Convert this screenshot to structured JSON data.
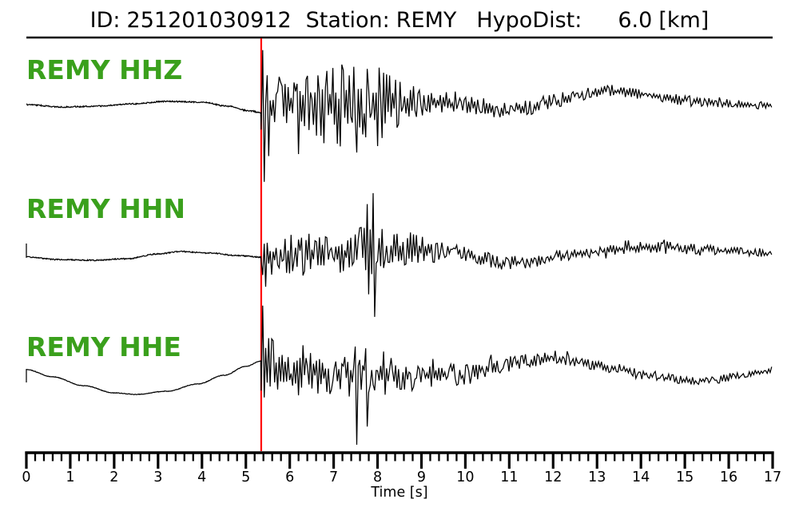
{
  "header": {
    "id_label": "ID:",
    "id_value": "251201030912",
    "station_label": "Station:",
    "station_value": "REMY",
    "hypodist_label": "HypoDist:",
    "hypodist_value": "6.0",
    "hypodist_unit": "[km]"
  },
  "colors": {
    "trace_label_green": "#3aa01c",
    "pick_line_red": "#ff0000",
    "waveform_black": "#000000",
    "axis_black": "#000000"
  },
  "chart_data": {
    "type": "line",
    "title": "ID: 251201030912  Station: REMY  HypoDist:    6.0 [km]",
    "xlabel": "Time [s]",
    "x_range": [
      0,
      17
    ],
    "x_major_tick_step": 1,
    "x_minor_tick_step": 0.2,
    "x_tick_labels": [
      "0",
      "1",
      "2",
      "3",
      "4",
      "5",
      "6",
      "7",
      "8",
      "9",
      "10",
      "11",
      "12",
      "13",
      "14",
      "15",
      "16",
      "17"
    ],
    "grid": false,
    "legend": "none",
    "pick_time_s": 5.35,
    "traces": [
      {
        "label": "REMY HHZ",
        "channel": "HHZ",
        "pre_jitter": 0.8,
        "start_tick": 0,
        "drift": [
          [
            0,
            2
          ],
          [
            0.8,
            -1
          ],
          [
            1.6,
            0
          ],
          [
            2.4,
            3
          ],
          [
            3.2,
            6
          ],
          [
            4.0,
            5
          ],
          [
            4.6,
            0
          ],
          [
            5.1,
            -6
          ],
          [
            5.35,
            -8
          ],
          [
            5.6,
            -3
          ],
          [
            6,
            0
          ],
          [
            7,
            0
          ],
          [
            8,
            2
          ],
          [
            8.6,
            5
          ],
          [
            9.3,
            4
          ],
          [
            10,
            0
          ],
          [
            10.8,
            -4
          ],
          [
            11.4,
            -2
          ],
          [
            12,
            6
          ],
          [
            12.6,
            14
          ],
          [
            13.2,
            19
          ],
          [
            13.8,
            17
          ],
          [
            14.4,
            12
          ],
          [
            15,
            8
          ],
          [
            15.7,
            4
          ],
          [
            16.3,
            2
          ],
          [
            17,
            1
          ]
        ],
        "envelope": [
          [
            5.38,
            58
          ],
          [
            5.6,
            42
          ],
          [
            6.0,
            38
          ],
          [
            6.4,
            42
          ],
          [
            6.8,
            48
          ],
          [
            7.2,
            55
          ],
          [
            7.6,
            62
          ],
          [
            8.0,
            55
          ],
          [
            8.4,
            32
          ],
          [
            9.0,
            20
          ],
          [
            9.5,
            15
          ],
          [
            10,
            13
          ],
          [
            10.5,
            12
          ],
          [
            11,
            10
          ],
          [
            11.5,
            9
          ],
          [
            12,
            9
          ],
          [
            12.7,
            8
          ],
          [
            13.5,
            8
          ],
          [
            14.5,
            7
          ],
          [
            15.5,
            6
          ],
          [
            16.5,
            5
          ],
          [
            17,
            5
          ]
        ],
        "spikes": [
          {
            "t": 5.38,
            "up": 78,
            "down": 87
          },
          {
            "t": 6.18,
            "up": 28,
            "down": 60
          }
        ]
      },
      {
        "label": "REMY HHN",
        "channel": "HHN",
        "pre_jitter": 0.7,
        "start_tick": -17,
        "drift": [
          [
            0,
            0
          ],
          [
            0.7,
            -3
          ],
          [
            1.5,
            -4
          ],
          [
            2.3,
            -2
          ],
          [
            3.0,
            4
          ],
          [
            3.5,
            7
          ],
          [
            4.2,
            5
          ],
          [
            4.8,
            2
          ],
          [
            5.35,
            0
          ],
          [
            6,
            2
          ],
          [
            7.2,
            4
          ],
          [
            8.4,
            9
          ],
          [
            9.2,
            11
          ],
          [
            9.8,
            6
          ],
          [
            10.4,
            -3
          ],
          [
            11,
            -7
          ],
          [
            11.6,
            -6
          ],
          [
            12.2,
            2
          ],
          [
            13,
            7
          ],
          [
            13.8,
            11
          ],
          [
            14.5,
            13
          ],
          [
            15.2,
            10
          ],
          [
            16,
            8
          ],
          [
            16.5,
            6
          ],
          [
            17,
            4
          ]
        ],
        "envelope": [
          [
            5.38,
            30
          ],
          [
            5.7,
            28
          ],
          [
            6.1,
            26
          ],
          [
            6.5,
            28
          ],
          [
            6.9,
            26
          ],
          [
            7.3,
            28
          ],
          [
            7.7,
            34
          ],
          [
            8.0,
            30
          ],
          [
            8.4,
            26
          ],
          [
            8.8,
            22
          ],
          [
            9.2,
            18
          ],
          [
            9.6,
            14
          ],
          [
            10,
            11
          ],
          [
            10.5,
            10
          ],
          [
            11,
            9
          ],
          [
            11.5,
            8
          ],
          [
            12,
            7
          ],
          [
            12.5,
            7
          ],
          [
            13,
            7
          ],
          [
            13.5,
            8
          ],
          [
            14,
            8
          ],
          [
            14.5,
            7
          ],
          [
            15,
            7
          ],
          [
            15.5,
            6
          ],
          [
            16,
            6
          ],
          [
            16.5,
            5
          ],
          [
            17,
            4
          ]
        ],
        "spikes": [
          {
            "t": 7.78,
            "up": 60,
            "down": 53
          },
          {
            "t": 7.9,
            "up": 73,
            "down": 82
          }
        ]
      },
      {
        "label": "REMY HHE",
        "channel": "HHE",
        "pre_jitter": 0.35,
        "start_tick": 16,
        "drift": [
          [
            0,
            2
          ],
          [
            0.6,
            -7
          ],
          [
            1.3,
            -18
          ],
          [
            2.0,
            -27
          ],
          [
            2.5,
            -29
          ],
          [
            3.2,
            -25
          ],
          [
            3.9,
            -16
          ],
          [
            4.5,
            -5
          ],
          [
            5.0,
            6
          ],
          [
            5.35,
            13
          ],
          [
            5.6,
            5
          ],
          [
            6.5,
            0
          ],
          [
            7.5,
            -4
          ],
          [
            8.5,
            -6
          ],
          [
            9.2,
            -5
          ],
          [
            10,
            -2
          ],
          [
            10.7,
            5
          ],
          [
            11.3,
            12
          ],
          [
            11.9,
            16
          ],
          [
            12.3,
            15
          ],
          [
            12.8,
            10
          ],
          [
            13.4,
            4
          ],
          [
            14,
            -3
          ],
          [
            14.6,
            -9
          ],
          [
            15.2,
            -13
          ],
          [
            15.7,
            -10
          ],
          [
            16.2,
            -6
          ],
          [
            16.7,
            -2
          ],
          [
            17,
            2
          ]
        ],
        "envelope": [
          [
            5.38,
            42
          ],
          [
            5.8,
            40
          ],
          [
            6.2,
            34
          ],
          [
            6.6,
            30
          ],
          [
            7.0,
            28
          ],
          [
            7.4,
            28
          ],
          [
            7.8,
            26
          ],
          [
            8.2,
            24
          ],
          [
            8.6,
            20
          ],
          [
            9.0,
            18
          ],
          [
            9.5,
            16
          ],
          [
            10,
            15
          ],
          [
            10.5,
            13
          ],
          [
            11,
            11
          ],
          [
            11.5,
            9
          ],
          [
            12,
            8
          ],
          [
            12.5,
            8
          ],
          [
            13,
            8
          ],
          [
            13.5,
            7
          ],
          [
            14,
            7
          ],
          [
            14.5,
            6
          ],
          [
            15,
            6
          ],
          [
            15.5,
            5
          ],
          [
            16,
            5
          ],
          [
            16.5,
            4
          ],
          [
            17,
            4
          ]
        ],
        "spikes": [
          {
            "t": 5.4,
            "up": 70,
            "down": 45
          },
          {
            "t": 7.5,
            "up": 35,
            "down": 88
          },
          {
            "t": 7.72,
            "up": 33,
            "down": 65
          }
        ]
      }
    ]
  }
}
